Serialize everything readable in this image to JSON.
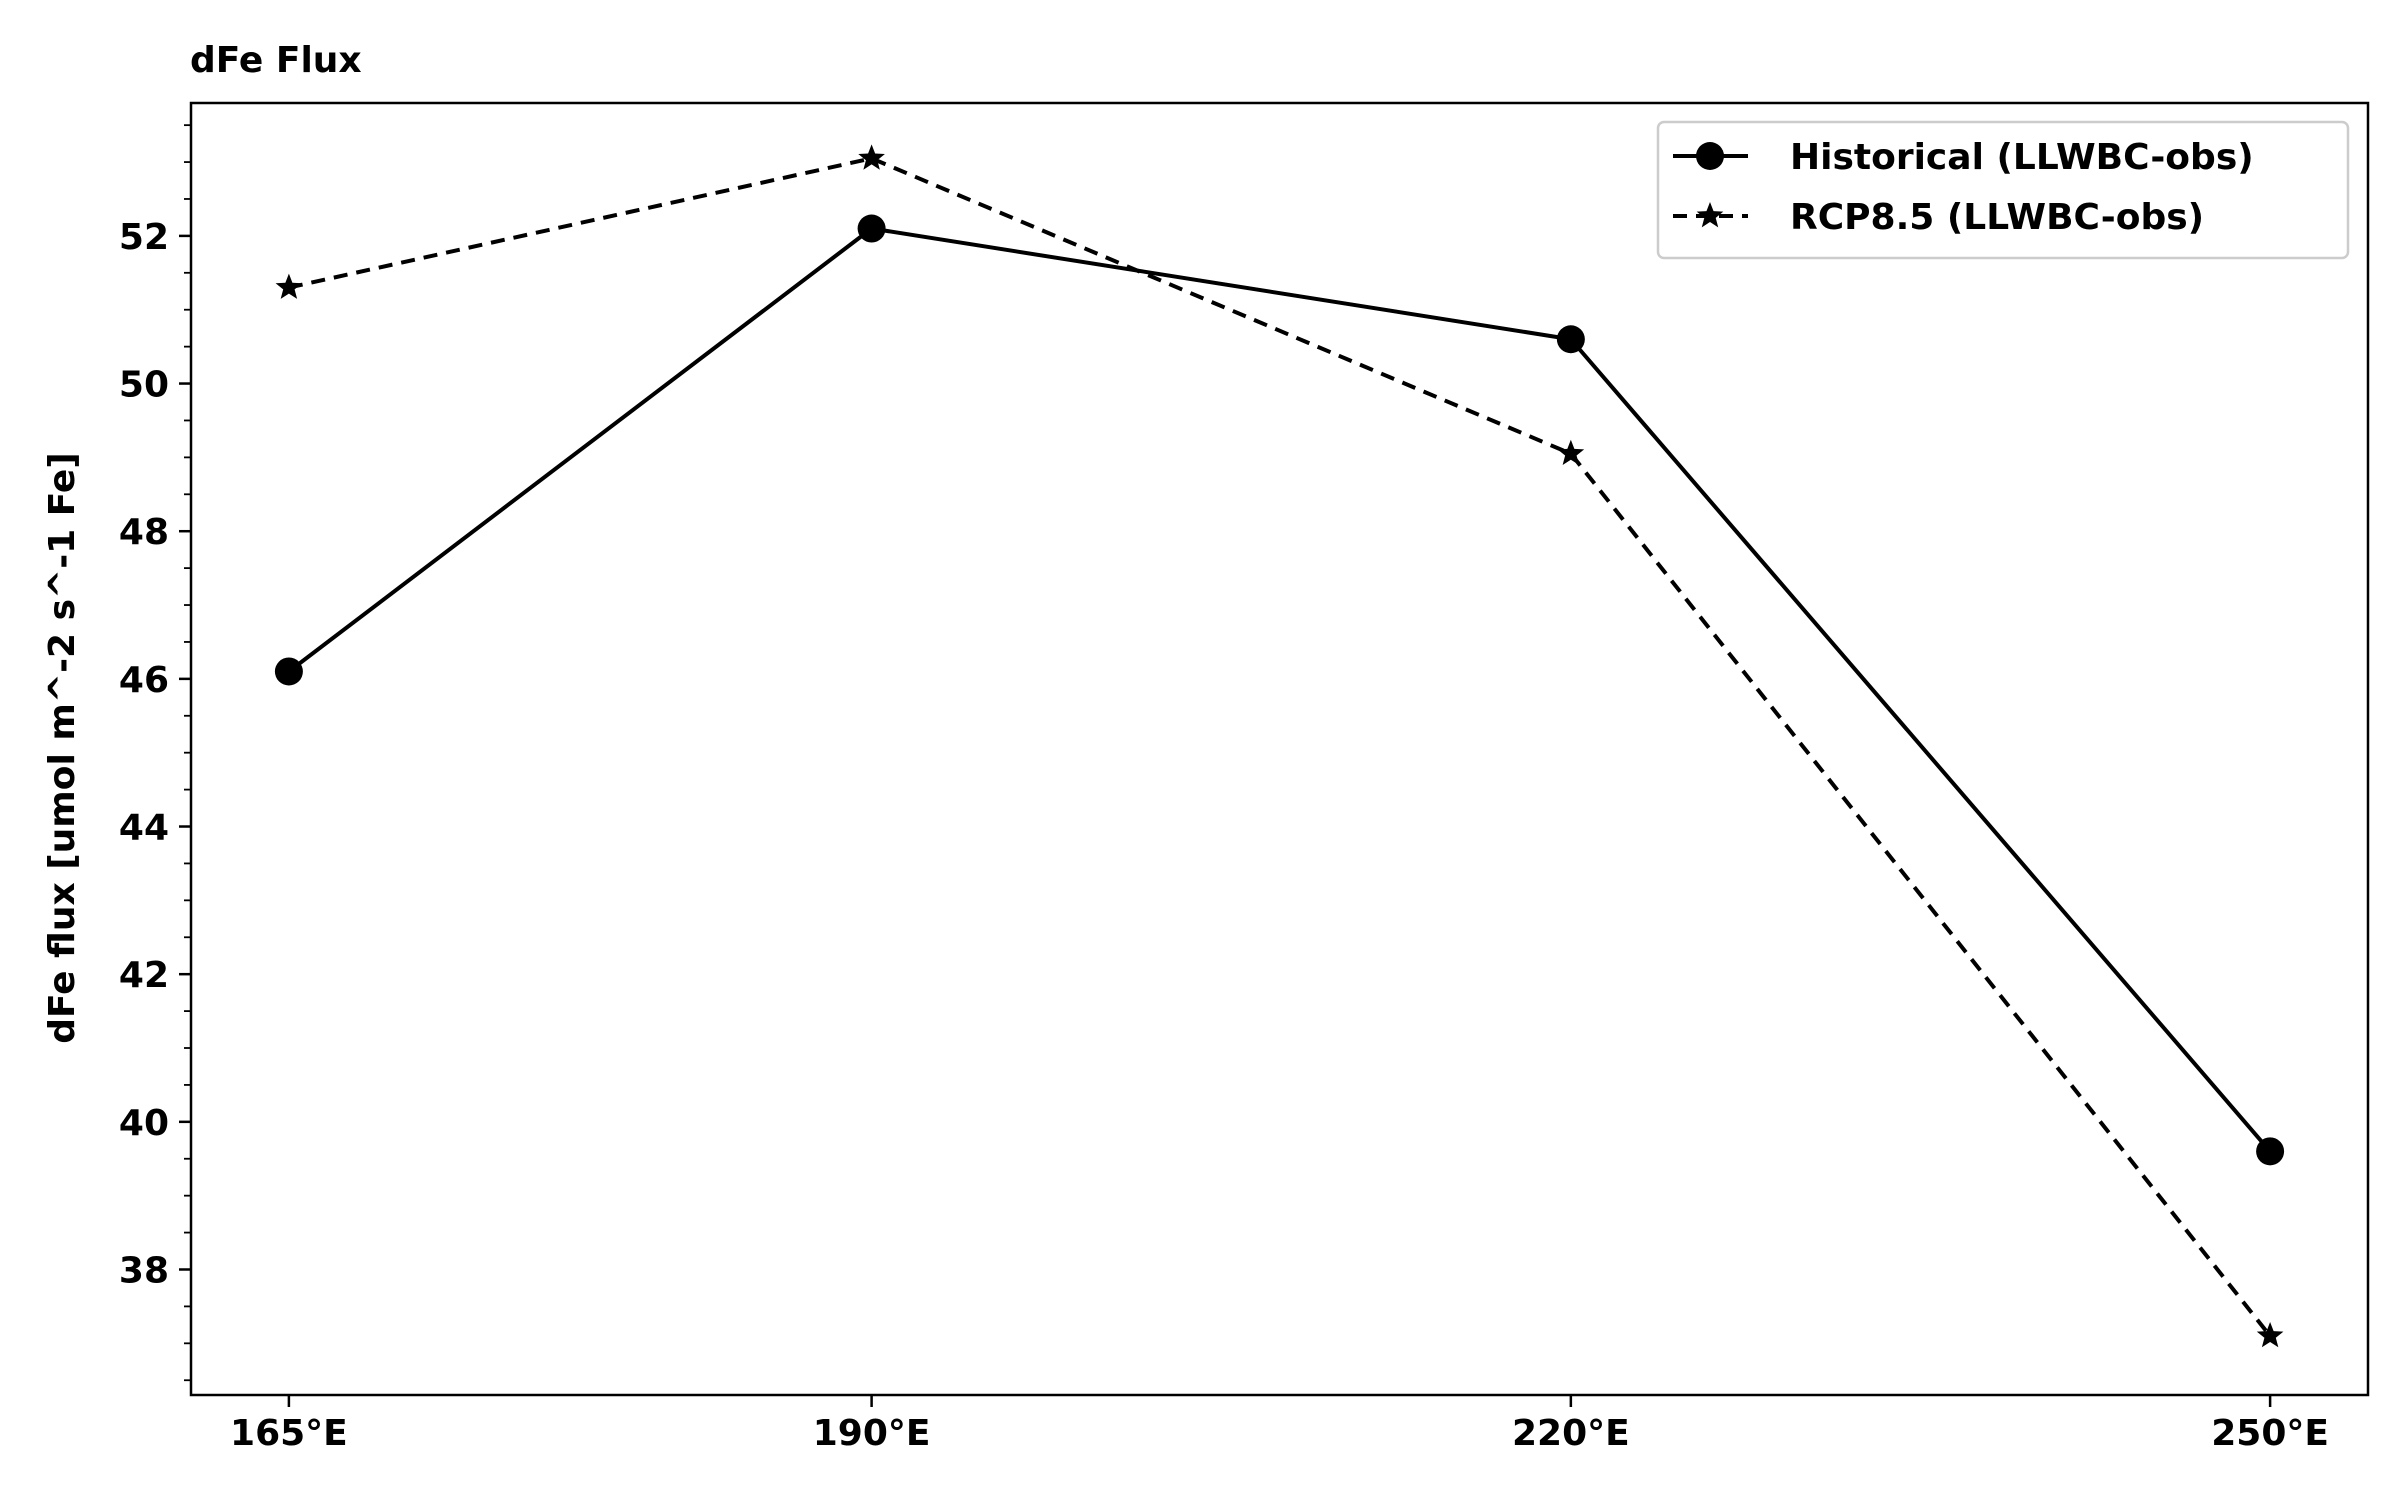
{
  "chart_data": {
    "type": "line",
    "title": "dFe Flux",
    "xlabel": "",
    "ylabel": "dFe flux [umol m^-2 s^-1 Fe]",
    "x": [
      165,
      190,
      220,
      250
    ],
    "x_tick_labels": [
      "165°E",
      "190°E",
      "220°E",
      "250°E"
    ],
    "xlim": [
      160.8,
      254.2
    ],
    "ylim": [
      36.3,
      53.8
    ],
    "y_ticks": [
      38,
      40,
      42,
      44,
      46,
      48,
      50,
      52
    ],
    "y_tick_labels": [
      "38",
      "40",
      "42",
      "44",
      "46",
      "48",
      "50",
      "52"
    ],
    "y_minor_step": 0.5,
    "grid": false,
    "legend_position": "top-right",
    "series": [
      {
        "name": "Historical (LLWBC-obs)",
        "values": [
          46.1,
          52.1,
          50.6,
          39.6
        ],
        "line_style": "solid",
        "marker": "circle",
        "color": "#000000"
      },
      {
        "name": "RCP8.5 (LLWBC-obs)",
        "values": [
          51.3,
          53.05,
          49.05,
          37.1
        ],
        "line_style": "dashed",
        "marker": "star",
        "color": "#000000"
      }
    ]
  }
}
